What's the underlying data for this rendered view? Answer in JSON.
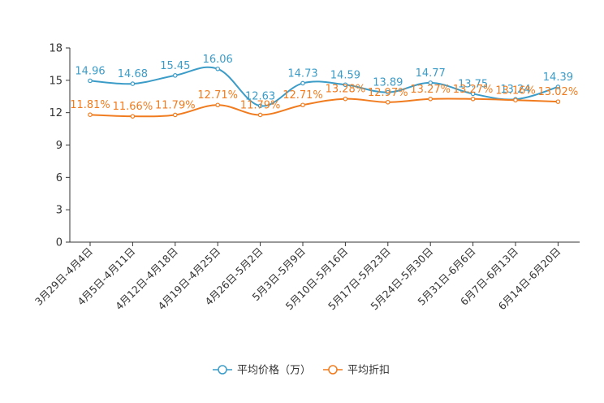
{
  "chart_data": {
    "type": "line",
    "title": "",
    "xlabel": "",
    "ylabel": "",
    "ylim": [
      0,
      18
    ],
    "yticks": [
      0,
      3,
      6,
      9,
      12,
      15,
      18
    ],
    "categories": [
      "3月29日-4月4日",
      "4月5日-4月11日",
      "4月12日-4月18日",
      "4月19日-4月25日",
      "4月26日-5月2日",
      "5月3日-5月9日",
      "5月10日-5月16日",
      "5月17日-5月23日",
      "5月24日-5月30日",
      "5月31日-6月6日",
      "6月7日-6月13日",
      "6月14日-6月20日"
    ],
    "legend_position": "bottom",
    "series": [
      {
        "name": "平均价格（万）",
        "color": "#3c9cc8",
        "values": [
          14.96,
          14.68,
          15.45,
          16.06,
          12.63,
          14.73,
          14.59,
          13.89,
          14.77,
          13.75,
          13.24,
          14.39
        ],
        "labels": [
          "14.96",
          "14.68",
          "15.45",
          "16.06",
          "12.63",
          "14.73",
          "14.59",
          "13.89",
          "14.77",
          "13.75",
          "13.24",
          "14.39"
        ]
      },
      {
        "name": "平均折扣",
        "color": "#f07c1f",
        "values": [
          11.81,
          11.66,
          11.79,
          12.71,
          11.79,
          12.71,
          13.28,
          12.97,
          13.27,
          13.27,
          13.16,
          13.02
        ],
        "labels": [
          "11.81%",
          "11.66%",
          "11.79%",
          "12.71%",
          "11.79%",
          "12.71%",
          "13.28%",
          "12.97%",
          "13.27%",
          "13.27%",
          "13.16%",
          "13.02%"
        ]
      }
    ]
  }
}
